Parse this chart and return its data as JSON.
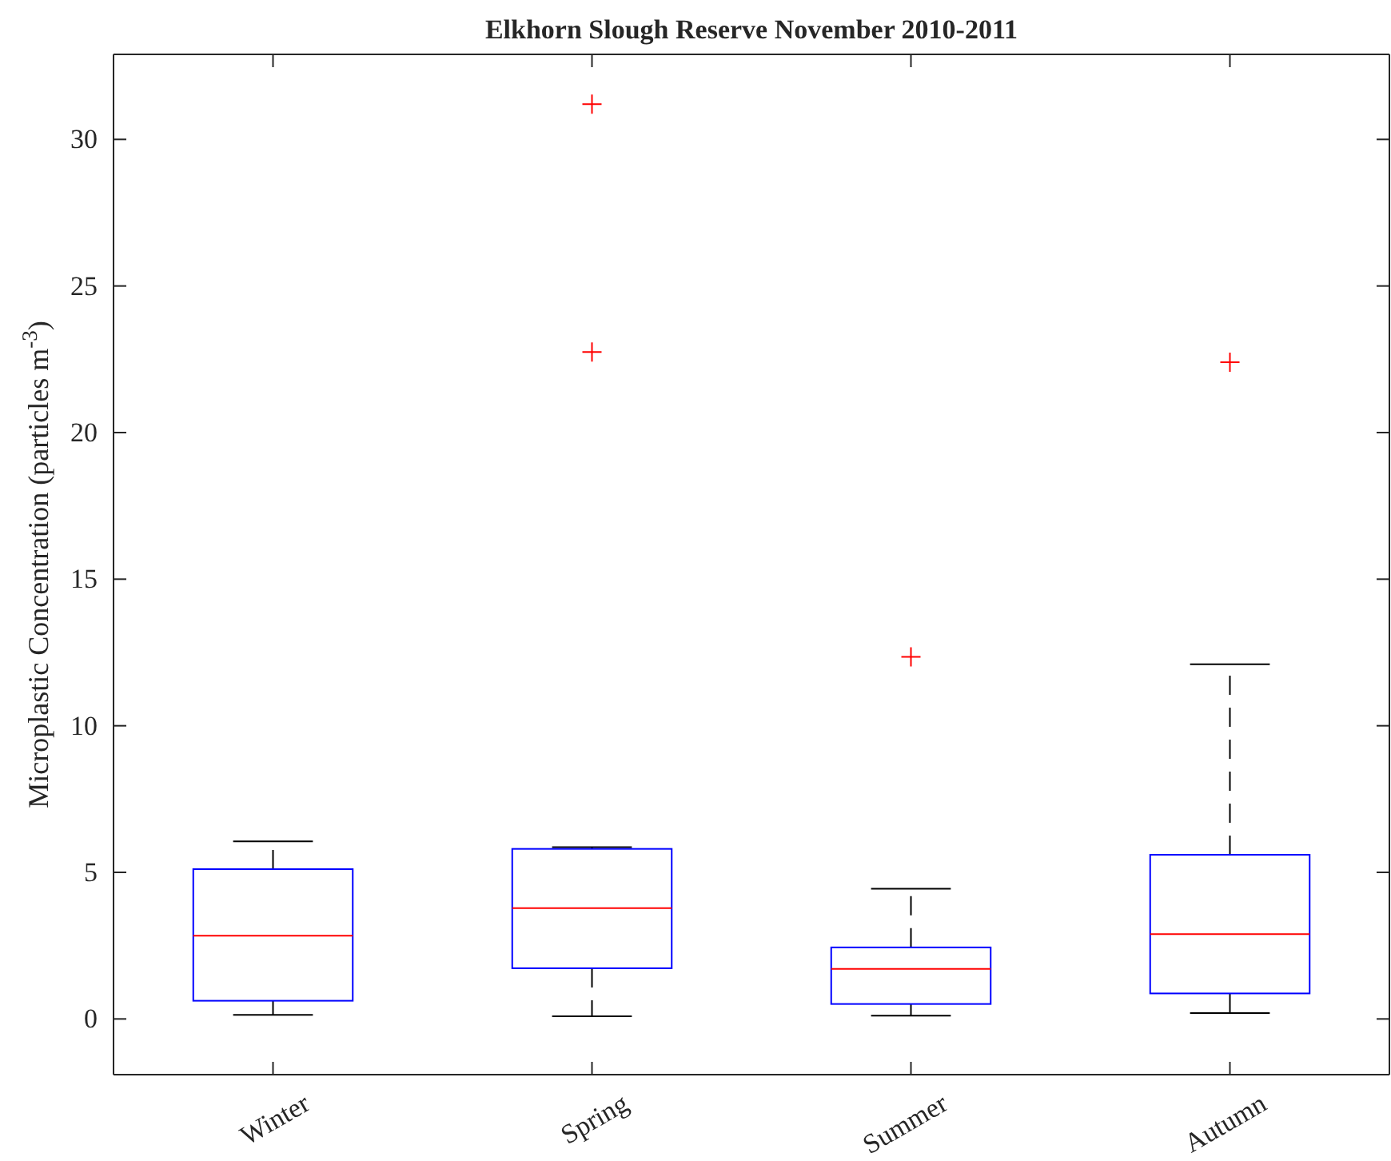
{
  "chart_data": {
    "type": "box",
    "title": "Elkhorn Slough Reserve November 2010-2011",
    "ylabel": "Microplastic Concentration (particles m$^{-3}$)",
    "categories": [
      "Winter",
      "Spring",
      "Summer",
      "Autumn"
    ],
    "ylim": [
      -1.9,
      32.9
    ],
    "yticks": [
      0,
      5,
      10,
      15,
      20,
      25,
      30
    ],
    "grid": false,
    "series": [
      {
        "color": "#0000ff",
        "boxes": [
          {
            "low": 0.14,
            "q1": 0.62,
            "median": 2.84,
            "q3": 5.11,
            "high": 6.06
          },
          {
            "low": 0.09,
            "q1": 1.73,
            "median": 3.78,
            "q3": 5.8,
            "high": 5.86,
            "outliers": [
              22.75,
              31.2
            ]
          },
          {
            "low": 0.11,
            "q1": 0.51,
            "median": 1.71,
            "q3": 2.44,
            "high": 4.44,
            "outliers": [
              12.35
            ]
          },
          {
            "low": 0.2,
            "q1": 0.87,
            "median": 2.89,
            "q3": 5.6,
            "high": 12.1,
            "outliers": [
              22.4
            ]
          }
        ]
      }
    ]
  }
}
